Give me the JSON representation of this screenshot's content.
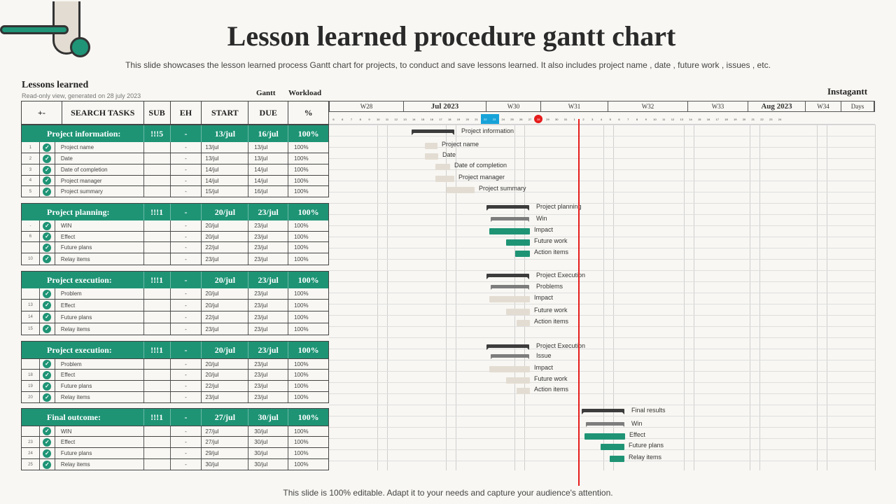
{
  "title": "Lesson learned procedure gantt chart",
  "subtitle": "This slide showcases the lesson learned process Gantt chart for projects, to conduct and save lessons learned. It also includes project name , date , future work , issues , etc.",
  "footer": "This slide is 100% editable. Adapt it to your needs and capture your audience's attention.",
  "section": {
    "title": "Lessons learned",
    "subtitle": "Read-only view, generated on 28 july 2023",
    "gantt": "Gantt",
    "workload": "Workload",
    "instagantt": "Instagantt"
  },
  "columns": {
    "toggle": "+-",
    "tasks": "SEARCH TASKS",
    "sub": "SUB",
    "eh": "EH",
    "start": "START",
    "due": "DUE",
    "pct": "%"
  },
  "groups": [
    {
      "name": "Project information:",
      "sub": "!!!5",
      "eh": "-",
      "start": "13/jul",
      "due": "16/jul",
      "pct": "100%",
      "rows": [
        {
          "num": "1",
          "name": "Project name",
          "eh": "-",
          "start": "13/jul",
          "due": "13/jul",
          "pct": "100%"
        },
        {
          "num": "2",
          "name": "Date",
          "eh": "-",
          "start": "13/jul",
          "due": "13/jul",
          "pct": "100%"
        },
        {
          "num": "3",
          "name": "Date of completion",
          "eh": "-",
          "start": "14/jul",
          "due": "14/jul",
          "pct": "100%"
        },
        {
          "num": "4",
          "name": "Project manager",
          "eh": "-",
          "start": "14/jul",
          "due": "14/jul",
          "pct": "100%"
        },
        {
          "num": "5",
          "name": "Project summary",
          "eh": "-",
          "start": "15/jul",
          "due": "16/jul",
          "pct": "100%"
        }
      ]
    },
    {
      "name": "Project planning:",
      "sub": "!!!1",
      "eh": "-",
      "start": "20/jul",
      "due": "23/jul",
      "pct": "100%",
      "rows": [
        {
          "num": "-",
          "name": "WIN",
          "eh": "-",
          "start": "20/jul",
          "due": "23/jul",
          "pct": "100%"
        },
        {
          "num": "6",
          "name": "Effect",
          "eh": "-",
          "start": "20/jul",
          "due": "23/jul",
          "pct": "100%"
        },
        {
          "num": "",
          "name": "Future plans",
          "eh": "-",
          "start": "22/jul",
          "due": "23/jul",
          "pct": "100%"
        },
        {
          "num": "10",
          "name": "Relay items",
          "eh": "-",
          "start": "23/jul",
          "due": "23/jul",
          "pct": "100%"
        }
      ]
    },
    {
      "name": "Project execution:",
      "sub": "!!!1",
      "eh": "-",
      "start": "20/jul",
      "due": "23/jul",
      "pct": "100%",
      "rows": [
        {
          "num": "",
          "name": "Problem",
          "eh": "-",
          "start": "20/jul",
          "due": "23/jul",
          "pct": "100%"
        },
        {
          "num": "13",
          "name": "Effect",
          "eh": "-",
          "start": "20/jul",
          "due": "23/jul",
          "pct": "100%"
        },
        {
          "num": "14",
          "name": "Future plans",
          "eh": "-",
          "start": "22/jul",
          "due": "23/jul",
          "pct": "100%"
        },
        {
          "num": "15",
          "name": "Relay items",
          "eh": "-",
          "start": "23/jul",
          "due": "23/jul",
          "pct": "100%"
        }
      ]
    },
    {
      "name": "Project execution:",
      "sub": "!!!1",
      "eh": "-",
      "start": "20/jul",
      "due": "23/jul",
      "pct": "100%",
      "rows": [
        {
          "num": "",
          "name": "Problem",
          "eh": "-",
          "start": "20/jul",
          "due": "23/jul",
          "pct": "100%"
        },
        {
          "num": "18",
          "name": "Effect",
          "eh": "-",
          "start": "20/jul",
          "due": "23/jul",
          "pct": "100%"
        },
        {
          "num": "19",
          "name": "Future plans",
          "eh": "-",
          "start": "22/jul",
          "due": "23/jul",
          "pct": "100%"
        },
        {
          "num": "20",
          "name": "Relay items",
          "eh": "-",
          "start": "23/jul",
          "due": "23/jul",
          "pct": "100%"
        }
      ]
    },
    {
      "name": "Final outcome:",
      "sub": "!!!1",
      "eh": "-",
      "start": "27/jul",
      "due": "30/jul",
      "pct": "100%",
      "rows": [
        {
          "num": "",
          "name": "WIN",
          "eh": "-",
          "start": "27/jul",
          "due": "30/jul",
          "pct": "100%"
        },
        {
          "num": "23",
          "name": "Effect",
          "eh": "-",
          "start": "27/jul",
          "due": "30/jul",
          "pct": "100%"
        },
        {
          "num": "24",
          "name": "Future plans",
          "eh": "-",
          "start": "29/jul",
          "due": "30/jul",
          "pct": "100%"
        },
        {
          "num": "25",
          "name": "Relay items",
          "eh": "-",
          "start": "30/jul",
          "due": "30/jul",
          "pct": "100%"
        }
      ]
    }
  ],
  "timeline": {
    "weeks": [
      "W28",
      "Jul 2023",
      "W30",
      "W31",
      "W32",
      "W33",
      "Aug 2023",
      "W34",
      "Days"
    ],
    "days": [
      "6",
      "6",
      "7",
      "8",
      "9",
      "10",
      "11",
      "12",
      "13",
      "14",
      "15",
      "16",
      "17",
      "18",
      "19",
      "20",
      "21",
      "22",
      "23",
      "24",
      "25",
      "26",
      "27",
      "28",
      "29",
      "30",
      "31",
      "1",
      "2",
      "3",
      "4",
      "5",
      "6",
      "7",
      "8",
      "9",
      "10",
      "11",
      "12",
      "13",
      "14",
      "15",
      "16",
      "17",
      "18",
      "19",
      "20",
      "21",
      "22",
      "23",
      "24"
    ],
    "selected_days": [
      "22",
      "23"
    ],
    "today": "28"
  },
  "gantt_labels": [
    "Project information",
    "Project name",
    "Date",
    "Date of completion",
    "Project manager",
    "Project summary",
    "Project planning",
    "Win",
    "Impact",
    "Future work",
    "Action  items",
    "Project Execution",
    "Problems",
    "Impact",
    "Future work",
    "Action  items",
    "Project Execution",
    "Issue",
    "Impact",
    "Future work",
    "Action  items",
    "Final results",
    "Win",
    "Effect",
    "Future plans",
    "Relay items"
  ],
  "colors": {
    "accent": "#1e9475",
    "beige": "#e3dcd2",
    "summary": "#3c3c3c",
    "today": "#e61c1c",
    "selected": "#17a3d8"
  }
}
